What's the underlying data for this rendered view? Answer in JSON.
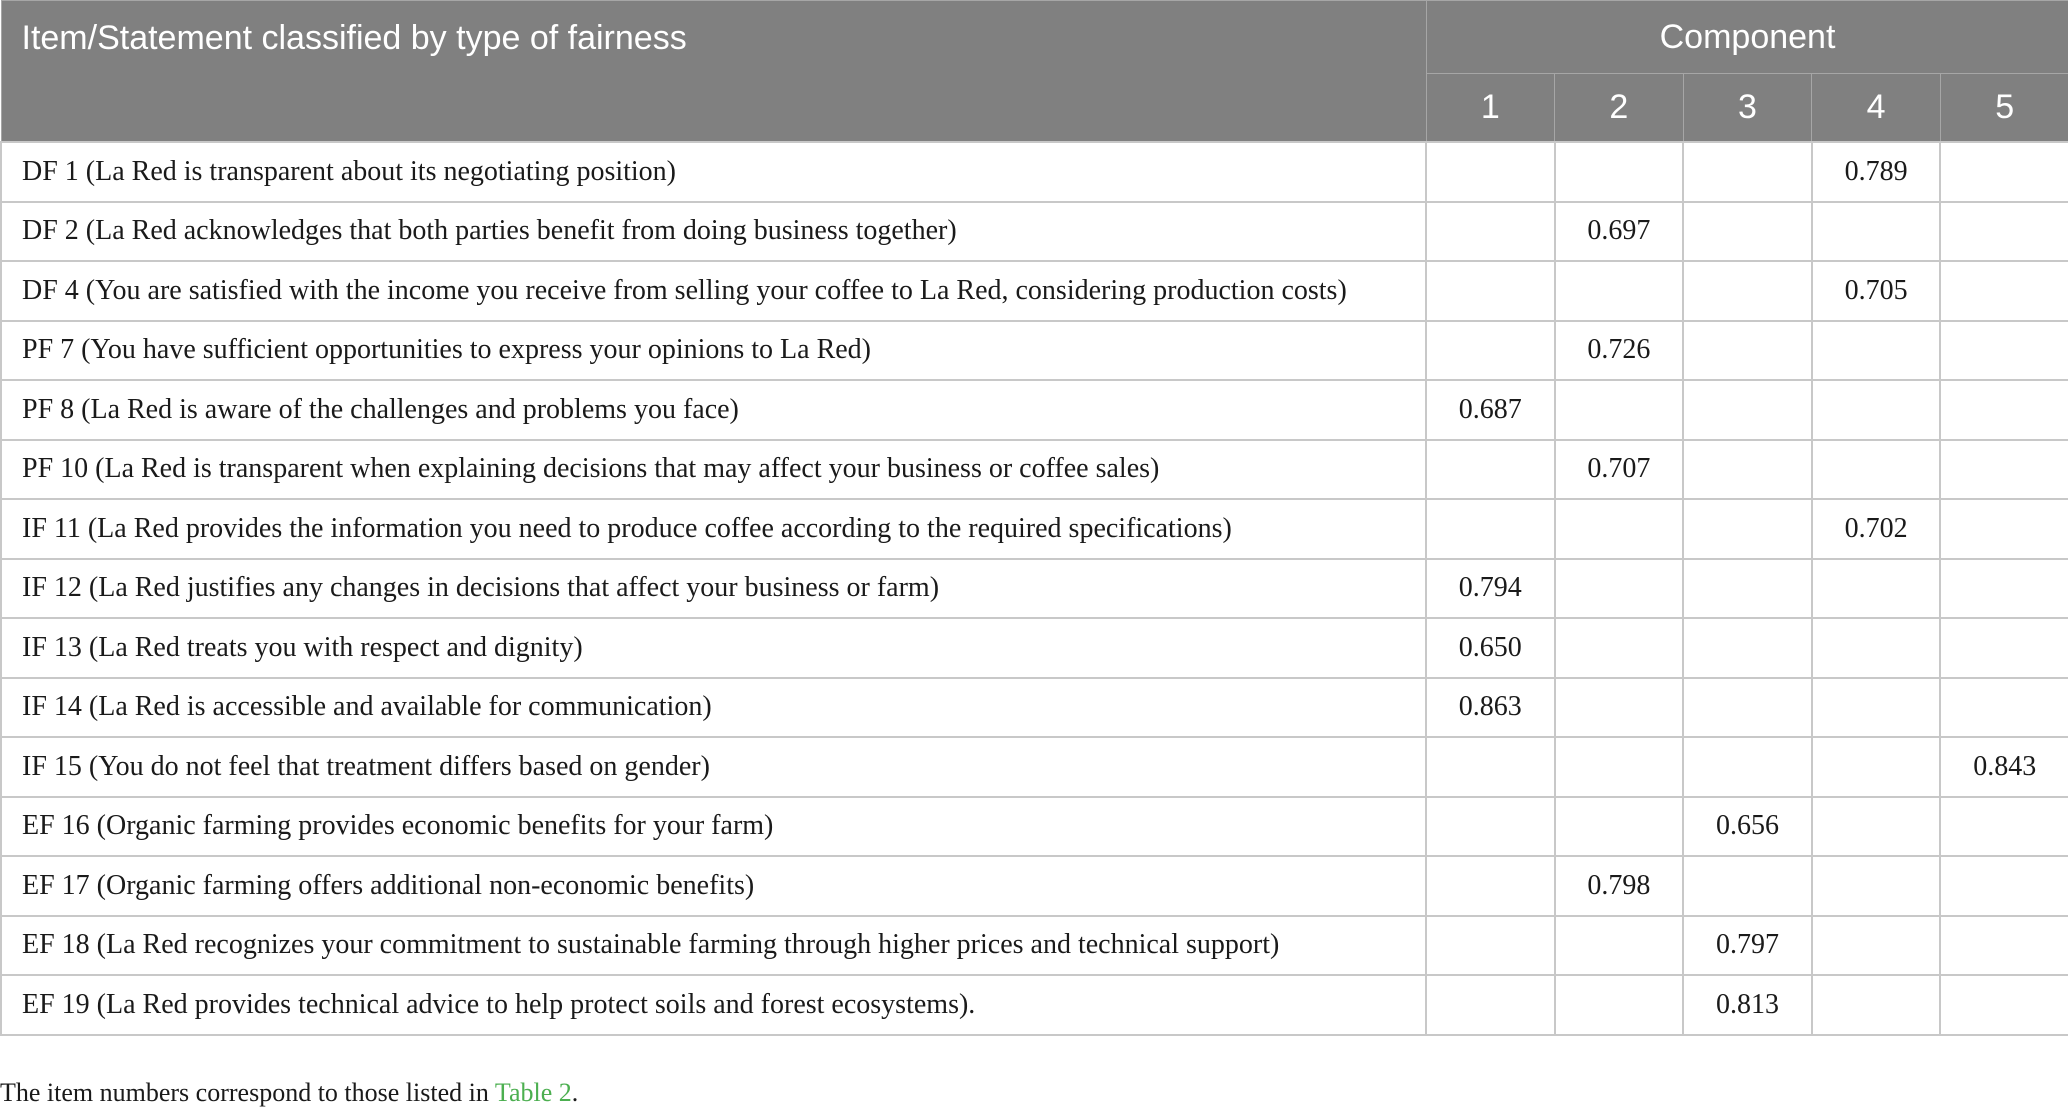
{
  "table": {
    "item_header": "Item/Statement classified by type of fairness",
    "component_header": "Component",
    "component_numbers": [
      "1",
      "2",
      "3",
      "4",
      "5"
    ],
    "rows": [
      {
        "item": "DF 1 (La Red is transparent about its negotiating position)",
        "values": [
          "",
          "",
          "",
          "0.789",
          ""
        ]
      },
      {
        "item": "DF 2 (La Red acknowledges that both parties benefit from doing business together)",
        "values": [
          "",
          "0.697",
          "",
          "",
          ""
        ]
      },
      {
        "item": "DF 4 (You are satisfied with the income you receive from selling your coffee to La Red, considering production costs)",
        "values": [
          "",
          "",
          "",
          "0.705",
          ""
        ]
      },
      {
        "item": "PF 7 (You have sufficient opportunities to express your opinions to La Red)",
        "values": [
          "",
          "0.726",
          "",
          "",
          ""
        ]
      },
      {
        "item": "PF 8 (La Red is aware of the challenges and problems you face)",
        "values": [
          "0.687",
          "",
          "",
          "",
          ""
        ]
      },
      {
        "item": "PF 10 (La Red is transparent when explaining decisions that may affect your business or coffee sales)",
        "values": [
          "",
          "0.707",
          "",
          "",
          ""
        ]
      },
      {
        "item": "IF 11 (La Red provides the information you need to produce coffee according to the required specifications)",
        "values": [
          "",
          "",
          "",
          "0.702",
          ""
        ]
      },
      {
        "item": "IF 12 (La Red justifies any changes in decisions that affect your business or farm)",
        "values": [
          "0.794",
          "",
          "",
          "",
          ""
        ]
      },
      {
        "item": "IF 13 (La Red treats you with respect and dignity)",
        "values": [
          "0.650",
          "",
          "",
          "",
          ""
        ]
      },
      {
        "item": "IF 14 (La Red is accessible and available for communication)",
        "values": [
          "0.863",
          "",
          "",
          "",
          ""
        ]
      },
      {
        "item": "IF 15 (You do not feel that treatment differs based on gender)",
        "values": [
          "",
          "",
          "",
          "",
          "0.843"
        ]
      },
      {
        "item": "EF 16 (Organic farming provides economic benefits for your farm)",
        "values": [
          "",
          "",
          "0.656",
          "",
          ""
        ]
      },
      {
        "item": "EF 17 (Organic farming offers additional non-economic benefits)",
        "values": [
          "",
          "0.798",
          "",
          "",
          ""
        ]
      },
      {
        "item": "EF 18 (La Red recognizes your commitment to sustainable farming through higher prices and technical support)",
        "values": [
          "",
          "",
          "0.797",
          "",
          ""
        ]
      },
      {
        "item": "EF 19 (La Red provides technical advice to help protect soils and forest ecosystems).",
        "values": [
          "",
          "",
          "0.813",
          "",
          ""
        ]
      }
    ]
  },
  "footnote": {
    "text_before": "The item numbers correspond to those listed in ",
    "link_text": "Table 2",
    "text_after": "."
  },
  "colors": {
    "header_bg": "#808080",
    "link": "#4caf50"
  }
}
